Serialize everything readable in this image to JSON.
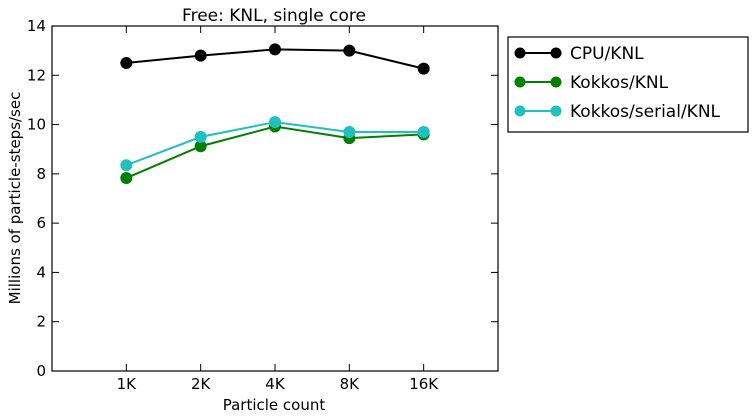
{
  "chart_data": {
    "type": "line",
    "title": "Free: KNL, single core",
    "xlabel": "Particle count",
    "ylabel": "Millions of particle-steps/sec",
    "categories": [
      "1K",
      "2K",
      "4K",
      "8K",
      "16K"
    ],
    "ylim": [
      0,
      14
    ],
    "yticks": [
      "0",
      "2",
      "4",
      "6",
      "8",
      "10",
      "12",
      "14"
    ],
    "grid": false,
    "legend_position": "outside-right",
    "series": [
      {
        "name": "CPU/KNL",
        "color": "#000000",
        "values": [
          12.5,
          12.8,
          13.05,
          13.0,
          12.27
        ]
      },
      {
        "name": "Kokkos/KNL",
        "color": "#008000",
        "values": [
          7.83,
          9.12,
          9.92,
          9.45,
          9.6
        ]
      },
      {
        "name": "Kokkos/serial/KNL",
        "color": "#20c0c0",
        "values": [
          8.35,
          9.5,
          10.1,
          9.7,
          9.7
        ]
      }
    ]
  }
}
